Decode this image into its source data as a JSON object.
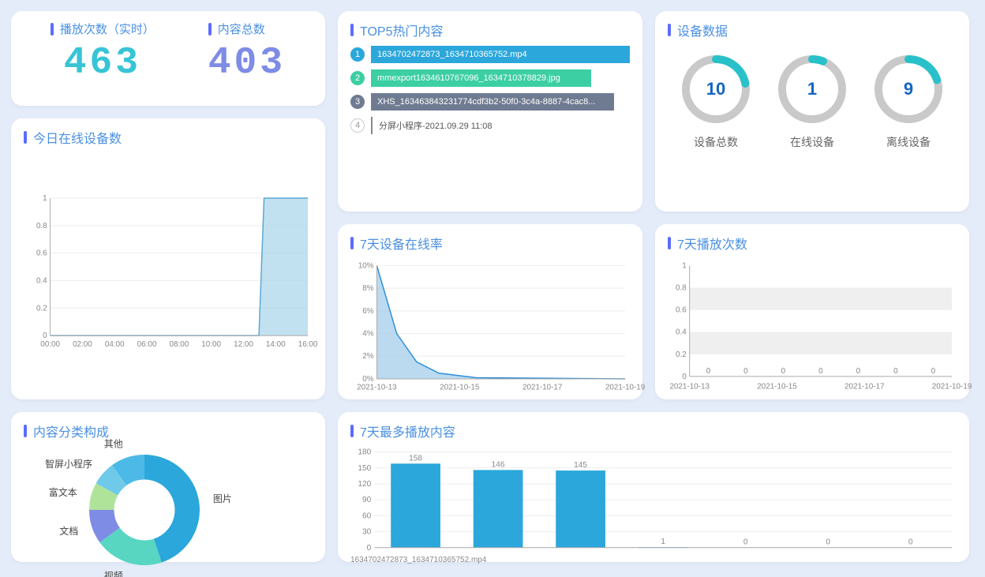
{
  "stats": {
    "playback_label": "播放次数（实时）",
    "playback_value": "463",
    "content_label": "内容总数",
    "content_value": "403"
  },
  "top5": {
    "title": "TOP5热门内容",
    "items": [
      {
        "rank": "1",
        "label": "1634702472873_1634710365752.mp4",
        "width": 100,
        "bar_color": "#2ba7db",
        "badge_color": "#2ba7db"
      },
      {
        "rank": "2",
        "label": "mmexport1634610767096_1634710378829.jpg",
        "width": 85,
        "bar_color": "#3bcfa3",
        "badge_color": "#3bcfa3"
      },
      {
        "rank": "3",
        "label": "XHS_163463843231774cdf3b2-50f0-3c4a-8887-4cac8...",
        "width": 94,
        "bar_color": "#6f7b90",
        "badge_color": "#6f7b90"
      },
      {
        "rank": "4",
        "label": "分屏小程序-2021.09.29 11:08",
        "width": 0,
        "bar_color": "#ffffff",
        "badge_color": "#ffffff",
        "text_color": "#555",
        "border": true
      }
    ]
  },
  "devices": {
    "title": "设备数据",
    "gauges": [
      {
        "label": "设备总数",
        "value": "10",
        "pct": 22
      },
      {
        "label": "在线设备",
        "value": "1",
        "pct": 6
      },
      {
        "label": "离线设备",
        "value": "9",
        "pct": 20
      }
    ],
    "ring_bg": "#c9c9c9",
    "ring_fg": "#29c1c9"
  },
  "today_online": {
    "title": "今日在线设备数",
    "type": "area",
    "x_labels": [
      "00:00",
      "02:00",
      "04:00",
      "06:00",
      "08:00",
      "10:00",
      "12:00",
      "14:00",
      "16:00"
    ],
    "y_ticks": [
      0,
      0.2,
      0.4,
      0.6,
      0.8,
      1
    ],
    "ylim": [
      0,
      1
    ],
    "points": [
      [
        0,
        0
      ],
      [
        0.81,
        0
      ],
      [
        0.83,
        1
      ],
      [
        1,
        1
      ]
    ],
    "line_color": "#5aa8d6",
    "fill_color": "#a6d4ea",
    "grid_color": "#eeeeee"
  },
  "pie": {
    "title": "内容分类构成",
    "type": "donut",
    "slices": [
      {
        "label": "图片",
        "value": 45,
        "color": "#2ba7db"
      },
      {
        "label": "视频",
        "value": 20,
        "color": "#58d6c2"
      },
      {
        "label": "文档",
        "value": 10,
        "color": "#7e8ce6"
      },
      {
        "label": "富文本",
        "value": 8,
        "color": "#b0e39a"
      },
      {
        "label": "智屏小程序",
        "value": 7,
        "color": "#6ecae8"
      },
      {
        "label": "其他",
        "value": 10,
        "color": "#4db9e6"
      }
    ],
    "inner_ratio": 0.55
  },
  "online_rate": {
    "title": "7天设备在线率",
    "type": "area",
    "x_labels": [
      "2021-10-13",
      "2021-10-15",
      "2021-10-17",
      "2021-10-19"
    ],
    "y_labels": [
      "0%",
      "2%",
      "4%",
      "6%",
      "8%",
      "10%"
    ],
    "ylim": [
      0,
      10
    ],
    "points": [
      [
        0,
        10
      ],
      [
        0.08,
        4
      ],
      [
        0.16,
        1.5
      ],
      [
        0.25,
        0.5
      ],
      [
        0.4,
        0.1
      ],
      [
        1,
        0
      ]
    ],
    "line_color": "#2e8ed8",
    "fill_color": "#9ecbe8",
    "grid_color": "#eeeeee"
  },
  "plays7": {
    "title": "7天播放次数",
    "type": "bar",
    "x_labels": [
      "2021-10-13",
      "2021-10-15",
      "2021-10-17",
      "2021-10-19"
    ],
    "y_ticks": [
      0,
      0.2,
      0.4,
      0.6,
      0.8,
      1
    ],
    "ylim": [
      0,
      1
    ],
    "values": [
      0,
      0,
      0,
      0,
      0,
      0,
      0
    ],
    "value_labels": [
      "0",
      "0",
      "0",
      "0",
      "0",
      "0",
      "0"
    ],
    "band_color": "#efefef"
  },
  "most_played": {
    "title": "7天最多播放内容",
    "type": "bar",
    "y_ticks": [
      0,
      30,
      60,
      90,
      120,
      150,
      180
    ],
    "ylim": [
      0,
      180
    ],
    "values": [
      158,
      146,
      145,
      1,
      0,
      0,
      0
    ],
    "bar_color": "#2ba7db",
    "footer_label": "1634702472873_1634710365752.mp4"
  },
  "colors": {
    "bg": "#e4ecfa",
    "card": "#ffffff",
    "accent": "#5b6cff",
    "title_text": "#4a90e2"
  }
}
